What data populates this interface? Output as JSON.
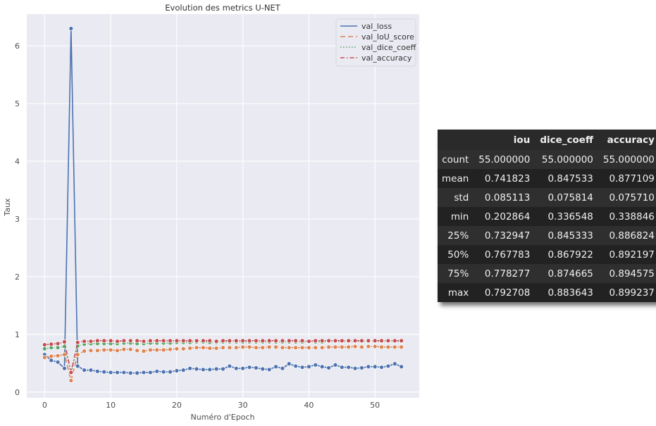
{
  "chart_data": {
    "type": "line",
    "title": "Evolution des metrics U-NET",
    "xlabel": "Numéro d'Epoch",
    "ylabel": "Taux",
    "xlim": [
      -2.7,
      56.7
    ],
    "ylim": [
      -0.1,
      6.55
    ],
    "xticks": [
      0,
      10,
      20,
      30,
      40,
      50
    ],
    "yticks": [
      0,
      1,
      2,
      3,
      4,
      5,
      6
    ],
    "grid": true,
    "legend_position": "top-right",
    "x": [
      0,
      1,
      2,
      3,
      4,
      5,
      6,
      7,
      8,
      9,
      10,
      11,
      12,
      13,
      14,
      15,
      16,
      17,
      18,
      19,
      20,
      21,
      22,
      23,
      24,
      25,
      26,
      27,
      28,
      29,
      30,
      31,
      32,
      33,
      34,
      35,
      36,
      37,
      38,
      39,
      40,
      41,
      42,
      43,
      44,
      45,
      46,
      47,
      48,
      49,
      50,
      51,
      52,
      53,
      54
    ],
    "series": [
      {
        "name": "val_loss",
        "color": "#4c72b0",
        "dash": "",
        "values": [
          0.65,
          0.55,
          0.52,
          0.41,
          6.3,
          0.45,
          0.38,
          0.38,
          0.36,
          0.35,
          0.34,
          0.34,
          0.34,
          0.33,
          0.33,
          0.34,
          0.34,
          0.36,
          0.35,
          0.35,
          0.37,
          0.38,
          0.41,
          0.4,
          0.39,
          0.39,
          0.4,
          0.4,
          0.45,
          0.41,
          0.41,
          0.43,
          0.42,
          0.4,
          0.39,
          0.44,
          0.41,
          0.49,
          0.45,
          0.43,
          0.44,
          0.47,
          0.44,
          0.42,
          0.47,
          0.43,
          0.43,
          0.41,
          0.42,
          0.44,
          0.44,
          0.43,
          0.45,
          0.49,
          0.44
        ]
      },
      {
        "name": "val_IoU_score",
        "color": "#dd8452",
        "dash": "7,4",
        "values": [
          0.6,
          0.62,
          0.63,
          0.65,
          0.2,
          0.65,
          0.71,
          0.72,
          0.72,
          0.73,
          0.73,
          0.72,
          0.74,
          0.74,
          0.72,
          0.71,
          0.73,
          0.73,
          0.73,
          0.74,
          0.75,
          0.75,
          0.76,
          0.77,
          0.77,
          0.76,
          0.76,
          0.77,
          0.77,
          0.77,
          0.78,
          0.78,
          0.77,
          0.77,
          0.78,
          0.78,
          0.77,
          0.77,
          0.77,
          0.77,
          0.77,
          0.77,
          0.77,
          0.78,
          0.78,
          0.78,
          0.78,
          0.79,
          0.78,
          0.79,
          0.79,
          0.78,
          0.78,
          0.78,
          0.78
        ]
      },
      {
        "name": "val_dice_coeff",
        "color": "#55a868",
        "dash": "1.5,2.5",
        "values": [
          0.75,
          0.77,
          0.77,
          0.79,
          0.34,
          0.8,
          0.83,
          0.84,
          0.84,
          0.84,
          0.84,
          0.84,
          0.85,
          0.85,
          0.84,
          0.84,
          0.85,
          0.85,
          0.85,
          0.85,
          0.86,
          0.86,
          0.86,
          0.87,
          0.87,
          0.86,
          0.86,
          0.87,
          0.87,
          0.87,
          0.87,
          0.87,
          0.87,
          0.87,
          0.87,
          0.87,
          0.87,
          0.87,
          0.87,
          0.87,
          0.87,
          0.87,
          0.87,
          0.88,
          0.88,
          0.88,
          0.88,
          0.88,
          0.88,
          0.88,
          0.88,
          0.88,
          0.88,
          0.88,
          0.88
        ]
      },
      {
        "name": "val_accuracy",
        "color": "#c44e52",
        "dash": "6,3,1.5,3",
        "values": [
          0.82,
          0.83,
          0.84,
          0.87,
          0.34,
          0.86,
          0.88,
          0.88,
          0.89,
          0.89,
          0.89,
          0.88,
          0.89,
          0.89,
          0.89,
          0.88,
          0.89,
          0.89,
          0.89,
          0.89,
          0.89,
          0.89,
          0.89,
          0.89,
          0.89,
          0.89,
          0.88,
          0.89,
          0.89,
          0.89,
          0.89,
          0.89,
          0.89,
          0.89,
          0.89,
          0.89,
          0.89,
          0.89,
          0.89,
          0.89,
          0.88,
          0.89,
          0.89,
          0.89,
          0.89,
          0.89,
          0.89,
          0.89,
          0.89,
          0.89,
          0.89,
          0.89,
          0.89,
          0.89,
          0.89
        ]
      }
    ]
  },
  "stats_table": {
    "columns": [
      "iou",
      "dice_coeff",
      "accuracy"
    ],
    "rows": [
      {
        "label": "count",
        "values": [
          "55.000000",
          "55.000000",
          "55.000000"
        ]
      },
      {
        "label": "mean",
        "values": [
          "0.741823",
          "0.847533",
          "0.877109"
        ]
      },
      {
        "label": "std",
        "values": [
          "0.085113",
          "0.075814",
          "0.075710"
        ]
      },
      {
        "label": "min",
        "values": [
          "0.202864",
          "0.336548",
          "0.338846"
        ]
      },
      {
        "label": "25%",
        "values": [
          "0.732947",
          "0.845333",
          "0.886824"
        ]
      },
      {
        "label": "50%",
        "values": [
          "0.767783",
          "0.867922",
          "0.892197"
        ]
      },
      {
        "label": "75%",
        "values": [
          "0.778277",
          "0.874665",
          "0.894575"
        ]
      },
      {
        "label": "max",
        "values": [
          "0.792708",
          "0.883643",
          "0.899237"
        ]
      }
    ]
  }
}
